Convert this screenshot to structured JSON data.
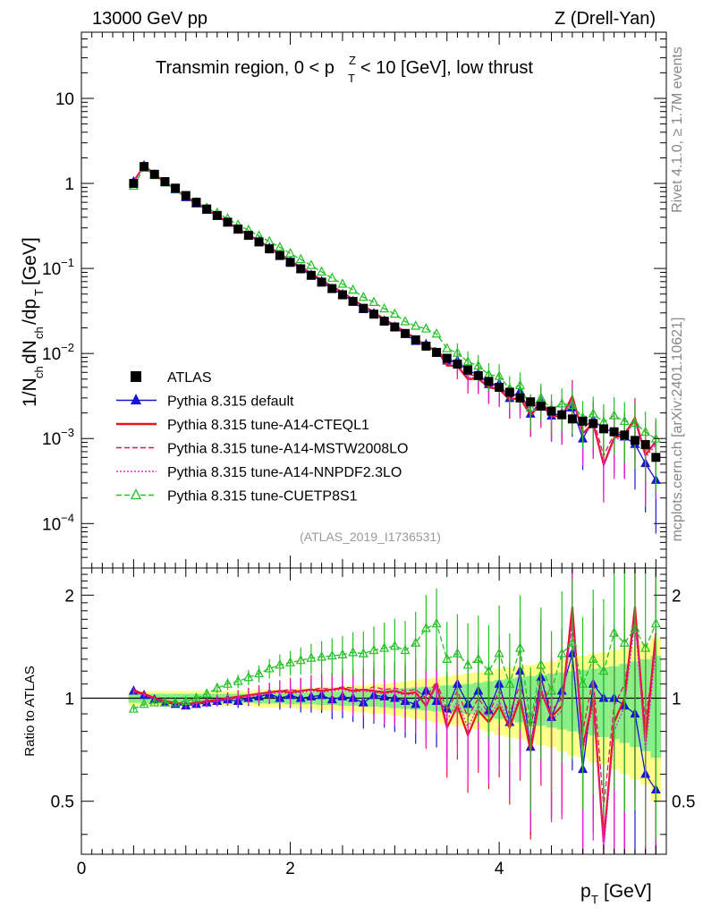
{
  "header": {
    "left": "13000 GeV pp",
    "right": "Z (Drell-Yan)"
  },
  "plot_title": "Transmin region, 0 < p_T^Z < 10 [GeV], low thrust",
  "analysis_id": "(ATLAS_2019_I1736531)",
  "side_text": {
    "rivet": "Rivet 4.1.0, ≥ 1.7M events",
    "mcplots": "mcplots.cern.ch [arXiv:2401.10621]"
  },
  "y_label_main": "1/N_ch dN_ch/dp_T [GeV]",
  "y_label_ratio": "Ratio to ATLAS",
  "x_label": "p_T [GeV]",
  "colors": {
    "data": "#000000",
    "default": "#1515d6",
    "cteql1": "#e8141e",
    "mstw": "#e0145a",
    "nnpdf": "#e020d8",
    "cuetp": "#22c022",
    "band_yellow": "#ffff88",
    "band_green": "#88ee88"
  },
  "legend": [
    {
      "key": "data",
      "label": "ATLAS"
    },
    {
      "key": "default",
      "label": "Pythia 8.315 default"
    },
    {
      "key": "cteql1",
      "label": "Pythia 8.315 tune-A14-CTEQL1"
    },
    {
      "key": "mstw",
      "label": "Pythia 8.315 tune-A14-MSTW2008LO"
    },
    {
      "key": "nnpdf",
      "label": "Pythia 8.315 tune-A14-NNPDF2.3LO"
    },
    {
      "key": "cuetp",
      "label": "Pythia 8.315 tune-CUETP8S1"
    }
  ],
  "chart_data": {
    "type": "scatter",
    "xlim": [
      0,
      5.6
    ],
    "x_ticks": [
      0,
      2,
      4
    ],
    "main": {
      "yscale": "log",
      "ylim": [
        3e-05,
        60
      ],
      "y_ticks": [
        {
          "v": 0.0001,
          "label": "10^-4"
        },
        {
          "v": 0.001,
          "label": "10^-3"
        },
        {
          "v": 0.01,
          "label": "10^-2"
        },
        {
          "v": 0.1,
          "label": "10^-1"
        },
        {
          "v": 1,
          "label": "1"
        },
        {
          "v": 10,
          "label": "10"
        }
      ]
    },
    "ratio": {
      "yscale": "log",
      "ylim": [
        0.35,
        2.4
      ],
      "y_ticks": [
        0.5,
        1,
        2
      ]
    },
    "x": [
      0.5,
      0.6,
      0.7,
      0.8,
      0.9,
      1.0,
      1.1,
      1.2,
      1.3,
      1.4,
      1.5,
      1.6,
      1.7,
      1.8,
      1.9,
      2.0,
      2.1,
      2.2,
      2.3,
      2.4,
      2.5,
      2.6,
      2.7,
      2.8,
      2.9,
      3.0,
      3.1,
      3.2,
      3.3,
      3.4,
      3.5,
      3.6,
      3.7,
      3.8,
      3.9,
      4.0,
      4.1,
      4.2,
      4.3,
      4.4,
      4.5,
      4.6,
      4.7,
      4.8,
      4.9,
      5.0,
      5.1,
      5.2,
      5.3,
      5.4,
      5.5
    ],
    "atlas": [
      1.0,
      1.58,
      1.28,
      1.05,
      0.88,
      0.72,
      0.6,
      0.5,
      0.42,
      0.35,
      0.29,
      0.245,
      0.205,
      0.17,
      0.142,
      0.118,
      0.099,
      0.083,
      0.069,
      0.058,
      0.049,
      0.041,
      0.034,
      0.029,
      0.024,
      0.0205,
      0.0172,
      0.0145,
      0.0122,
      0.0103,
      0.0088,
      0.0075,
      0.0064,
      0.0055,
      0.0047,
      0.004,
      0.0035,
      0.003,
      0.0027,
      0.0024,
      0.0021,
      0.0019,
      0.0017,
      0.0016,
      0.0015,
      0.0013,
      0.0012,
      0.0011,
      0.00095,
      0.00085,
      0.0006
    ],
    "band_yellow": [
      0.05,
      0.05,
      0.05,
      0.05,
      0.05,
      0.05,
      0.05,
      0.05,
      0.05,
      0.05,
      0.05,
      0.05,
      0.06,
      0.06,
      0.06,
      0.06,
      0.07,
      0.07,
      0.08,
      0.08,
      0.08,
      0.09,
      0.09,
      0.1,
      0.1,
      0.11,
      0.12,
      0.13,
      0.14,
      0.15,
      0.16,
      0.17,
      0.18,
      0.19,
      0.2,
      0.22,
      0.23,
      0.24,
      0.25,
      0.27,
      0.28,
      0.3,
      0.32,
      0.33,
      0.35,
      0.36,
      0.38,
      0.4,
      0.42,
      0.44,
      0.5
    ],
    "band_green": [
      0.03,
      0.03,
      0.03,
      0.03,
      0.03,
      0.03,
      0.03,
      0.03,
      0.03,
      0.03,
      0.03,
      0.03,
      0.035,
      0.035,
      0.035,
      0.04,
      0.04,
      0.04,
      0.045,
      0.045,
      0.05,
      0.05,
      0.055,
      0.055,
      0.06,
      0.065,
      0.07,
      0.075,
      0.08,
      0.085,
      0.09,
      0.095,
      0.1,
      0.11,
      0.12,
      0.13,
      0.14,
      0.15,
      0.16,
      0.17,
      0.18,
      0.19,
      0.2,
      0.21,
      0.22,
      0.23,
      0.24,
      0.26,
      0.28,
      0.3,
      0.33
    ],
    "series": [
      {
        "key": "default",
        "style": "solid",
        "marker": "filled-triangle",
        "ratio": [
          1.05,
          1.02,
          0.99,
          0.97,
          0.96,
          0.95,
          0.96,
          0.97,
          0.98,
          0.99,
          0.98,
          1.0,
          1.01,
          1.03,
          1.0,
          1.02,
          1.0,
          1.01,
          1.02,
          0.99,
          1.01,
          1.0,
          0.97,
          1.02,
          1.01,
          1.0,
          0.98,
          0.96,
          1.05,
          0.98,
          0.93,
          1.1,
          0.96,
          1.05,
          0.92,
          1.1,
          0.85,
          1.2,
          0.72,
          1.15,
          0.88,
          1.05,
          1.35,
          0.62,
          1.1,
          1.0,
          1.0,
          0.95,
          0.9,
          0.6,
          0.54
        ]
      },
      {
        "key": "cteql1",
        "style": "solid",
        "marker": "none",
        "ratio": [
          1.05,
          1.03,
          1.0,
          0.98,
          0.97,
          0.96,
          0.97,
          0.98,
          0.99,
          1.0,
          1.01,
          1.02,
          1.03,
          1.04,
          1.05,
          1.04,
          1.05,
          1.06,
          1.05,
          1.06,
          1.07,
          1.05,
          1.06,
          1.05,
          1.04,
          1.05,
          1.03,
          1.04,
          0.95,
          1.1,
          0.82,
          0.95,
          0.78,
          0.92,
          0.85,
          0.95,
          0.82,
          1.0,
          0.7,
          1.05,
          0.88,
          0.95,
          1.85,
          0.72,
          1.0,
          0.38,
          0.85,
          1.0,
          1.85,
          0.75,
          1.55
        ]
      },
      {
        "key": "mstw",
        "style": "dashed",
        "marker": "none",
        "ratio": [
          1.06,
          1.03,
          1.0,
          0.98,
          0.97,
          0.96,
          0.97,
          0.98,
          0.99,
          1.0,
          1.01,
          1.02,
          1.03,
          1.04,
          1.05,
          1.06,
          1.05,
          1.06,
          1.07,
          1.06,
          1.08,
          1.07,
          1.05,
          1.08,
          1.06,
          1.07,
          1.05,
          1.06,
          1.0,
          1.12,
          0.92,
          1.05,
          0.88,
          1.0,
          0.9,
          1.05,
          0.9,
          1.1,
          0.82,
          1.15,
          0.92,
          1.0,
          1.65,
          0.8,
          1.15,
          0.48,
          0.95,
          1.1,
          1.65,
          0.85,
          1.45
        ]
      },
      {
        "key": "nnpdf",
        "style": "dotted",
        "marker": "none",
        "ratio": [
          1.04,
          1.02,
          0.99,
          0.97,
          0.96,
          0.95,
          0.96,
          0.97,
          0.98,
          0.99,
          1.0,
          1.01,
          1.02,
          1.03,
          1.04,
          1.03,
          1.04,
          1.05,
          1.04,
          1.05,
          1.06,
          1.04,
          1.05,
          1.04,
          1.03,
          1.04,
          1.02,
          1.03,
          0.96,
          1.08,
          0.86,
          0.98,
          0.82,
          0.95,
          0.88,
          0.98,
          0.85,
          1.02,
          0.74,
          1.08,
          0.86,
          0.92,
          1.7,
          0.7,
          0.95,
          0.36,
          0.8,
          0.95,
          1.7,
          0.7,
          1.4
        ]
      },
      {
        "key": "cuetp",
        "style": "dashed",
        "marker": "open-triangle",
        "ratio": [
          0.93,
          0.96,
          0.97,
          0.97,
          0.97,
          0.98,
          1.0,
          1.03,
          1.07,
          1.1,
          1.12,
          1.15,
          1.18,
          1.22,
          1.25,
          1.27,
          1.29,
          1.31,
          1.32,
          1.33,
          1.34,
          1.36,
          1.35,
          1.38,
          1.4,
          1.42,
          1.38,
          1.45,
          1.6,
          1.65,
          1.3,
          1.35,
          1.25,
          1.3,
          1.2,
          1.35,
          1.1,
          1.4,
          0.85,
          1.25,
          1.05,
          1.35,
          1.45,
          1.1,
          1.3,
          1.2,
          1.55,
          1.45,
          1.6,
          1.4,
          1.65
        ]
      }
    ]
  }
}
